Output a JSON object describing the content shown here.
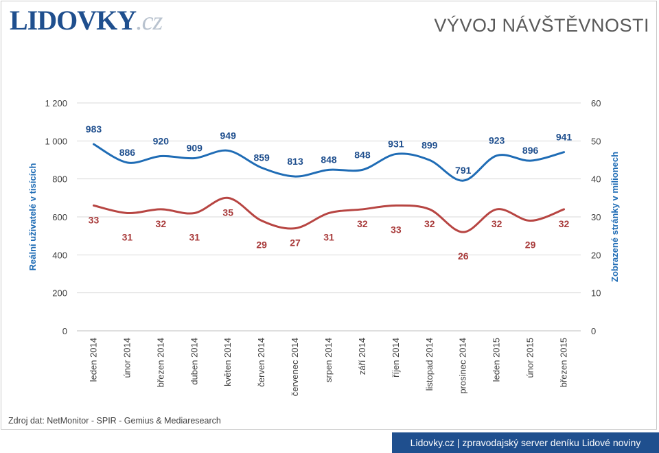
{
  "header": {
    "logo_main": "LIDOVKY",
    "logo_tld": ".cz",
    "title": "VÝVOJ NÁVŠTĚVNOSTI"
  },
  "footer": {
    "source": "Zdroj dat: NetMonitor - SPIR - Gemius & Mediaresearch",
    "banner": "Lidovky.cz | zpravodajský server deníku Lidové noviny"
  },
  "colors": {
    "blue": "#1f6cb5",
    "red": "#b74542",
    "brand": "#1f4f8e"
  },
  "chart_data": {
    "type": "line",
    "categories": [
      "leden 2014",
      "únor 2014",
      "březen 2014",
      "duben 2014",
      "květen 2014",
      "červen 2014",
      "červenec 2014",
      "srpen 2014",
      "září 2014",
      "říjen 2014",
      "listopad 2014",
      "prosinec 2014",
      "leden 2015",
      "únor 2015",
      "březen 2015"
    ],
    "series": [
      {
        "name": "Reální uživatelé v tisících",
        "axis": "left",
        "color": "#1f6cb5",
        "values": [
          983,
          886,
          920,
          909,
          949,
          859,
          813,
          848,
          848,
          931,
          899,
          791,
          923,
          896,
          941
        ]
      },
      {
        "name": "Zobrazené stránky v milionech",
        "axis": "right",
        "color": "#b74542",
        "values": [
          33,
          31,
          32,
          31,
          35,
          29,
          27,
          31,
          32,
          33,
          32,
          26,
          32,
          29,
          32
        ]
      }
    ],
    "y_left": {
      "label": "Reální uživatelé v tisících",
      "range": [
        0,
        1200
      ],
      "ticks": [
        0,
        200,
        400,
        600,
        800,
        1000,
        1200
      ],
      "tick_labels": [
        "0",
        "200",
        "400",
        "600",
        "800",
        "1 000",
        "1 200"
      ]
    },
    "y_right": {
      "label": "Zobrazené stránky v milionech",
      "range": [
        0,
        60
      ],
      "ticks": [
        0,
        10,
        20,
        30,
        40,
        50,
        60
      ],
      "tick_labels": [
        "0",
        "10",
        "20",
        "30",
        "40",
        "50",
        "60"
      ]
    },
    "grid": true,
    "smooth": true
  }
}
